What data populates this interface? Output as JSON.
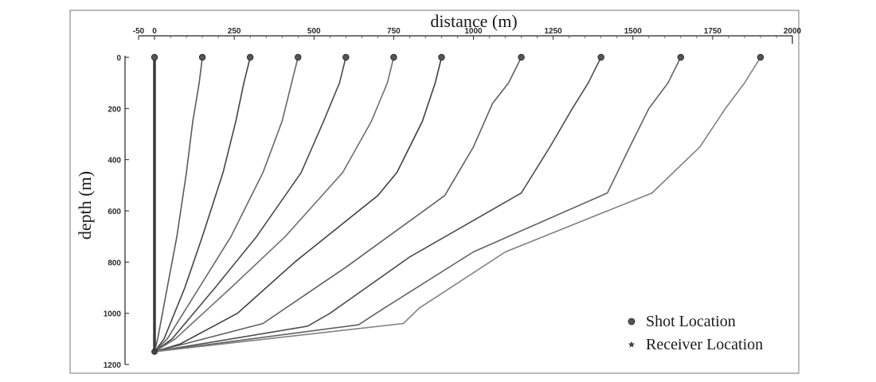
{
  "chart_data": {
    "type": "line",
    "title": "",
    "xlabel": "distance (m)",
    "ylabel": "depth (m)",
    "xlim": [
      -50,
      2000
    ],
    "ylim": [
      0,
      1200
    ],
    "x_ticks": [
      -50,
      0,
      250,
      500,
      750,
      1000,
      1250,
      1500,
      1750,
      2000
    ],
    "x_tick_labels": [
      "-50",
      "0",
      "250",
      "500",
      "750",
      "1000",
      "1250",
      "1500",
      "1750",
      "2000"
    ],
    "y_ticks": [
      0,
      200,
      400,
      600,
      800,
      1000,
      1200
    ],
    "y_tick_labels": [
      "0",
      "200",
      "400",
      "600",
      "800",
      "1000",
      "1200"
    ],
    "x_axis_position": "top",
    "y_axis_inverted": true,
    "grid": false,
    "legend": {
      "placement": "bottom-right",
      "entries": [
        {
          "label": "Shot Location",
          "marker": "circle"
        },
        {
          "label": "Receiver Location",
          "marker": "star"
        }
      ]
    },
    "receiver": {
      "x": 0,
      "y": 1150
    },
    "shots": [
      {
        "x": 0,
        "y": 0
      },
      {
        "x": 150,
        "y": 0
      },
      {
        "x": 300,
        "y": 0
      },
      {
        "x": 450,
        "y": 0
      },
      {
        "x": 600,
        "y": 0
      },
      {
        "x": 750,
        "y": 0
      },
      {
        "x": 900,
        "y": 0
      },
      {
        "x": 1150,
        "y": 0
      },
      {
        "x": 1400,
        "y": 0
      },
      {
        "x": 1650,
        "y": 0
      },
      {
        "x": 1900,
        "y": 0
      }
    ],
    "series": [
      {
        "points": [
          [
            0,
            0
          ],
          [
            0,
            200
          ],
          [
            0,
            400
          ],
          [
            0,
            600
          ],
          [
            0,
            800
          ],
          [
            0,
            1000
          ],
          [
            0,
            1150
          ]
        ]
      },
      {
        "points": [
          [
            150,
            0
          ],
          [
            140,
            100
          ],
          [
            120,
            250
          ],
          [
            100,
            450
          ],
          [
            70,
            700
          ],
          [
            40,
            900
          ],
          [
            10,
            1100
          ],
          [
            0,
            1150
          ]
        ]
      },
      {
        "points": [
          [
            300,
            0
          ],
          [
            280,
            100
          ],
          [
            255,
            250
          ],
          [
            215,
            450
          ],
          [
            150,
            700
          ],
          [
            95,
            900
          ],
          [
            30,
            1100
          ],
          [
            0,
            1150
          ]
        ]
      },
      {
        "points": [
          [
            450,
            0
          ],
          [
            430,
            100
          ],
          [
            400,
            250
          ],
          [
            340,
            450
          ],
          [
            240,
            700
          ],
          [
            140,
            900
          ],
          [
            40,
            1100
          ],
          [
            0,
            1150
          ]
        ]
      },
      {
        "points": [
          [
            600,
            0
          ],
          [
            580,
            100
          ],
          [
            530,
            250
          ],
          [
            460,
            450
          ],
          [
            320,
            700
          ],
          [
            190,
            900
          ],
          [
            55,
            1100
          ],
          [
            0,
            1150
          ]
        ]
      },
      {
        "points": [
          [
            750,
            0
          ],
          [
            730,
            100
          ],
          [
            680,
            250
          ],
          [
            590,
            450
          ],
          [
            410,
            700
          ],
          [
            240,
            900
          ],
          [
            65,
            1100
          ],
          [
            0,
            1150
          ]
        ]
      },
      {
        "points": [
          [
            900,
            0
          ],
          [
            880,
            100
          ],
          [
            840,
            250
          ],
          [
            760,
            450
          ],
          [
            700,
            540
          ],
          [
            440,
            800
          ],
          [
            260,
            1000
          ],
          [
            80,
            1120
          ],
          [
            0,
            1150
          ]
        ]
      },
      {
        "points": [
          [
            1150,
            0
          ],
          [
            1110,
            100
          ],
          [
            1060,
            180
          ],
          [
            1000,
            350
          ],
          [
            910,
            540
          ],
          [
            600,
            820
          ],
          [
            340,
            1040
          ],
          [
            0,
            1150
          ]
        ]
      },
      {
        "points": [
          [
            1400,
            0
          ],
          [
            1360,
            100
          ],
          [
            1310,
            200
          ],
          [
            1240,
            350
          ],
          [
            1150,
            530
          ],
          [
            800,
            780
          ],
          [
            550,
            1000
          ],
          [
            480,
            1050
          ],
          [
            0,
            1150
          ]
        ]
      },
      {
        "points": [
          [
            1650,
            0
          ],
          [
            1610,
            100
          ],
          [
            1550,
            200
          ],
          [
            1490,
            350
          ],
          [
            1420,
            530
          ],
          [
            1000,
            760
          ],
          [
            720,
            980
          ],
          [
            640,
            1045
          ],
          [
            0,
            1150
          ]
        ]
      },
      {
        "points": [
          [
            1900,
            0
          ],
          [
            1850,
            100
          ],
          [
            1790,
            200
          ],
          [
            1710,
            350
          ],
          [
            1560,
            530
          ],
          [
            1100,
            760
          ],
          [
            830,
            980
          ],
          [
            780,
            1040
          ],
          [
            0,
            1150
          ]
        ]
      }
    ]
  }
}
